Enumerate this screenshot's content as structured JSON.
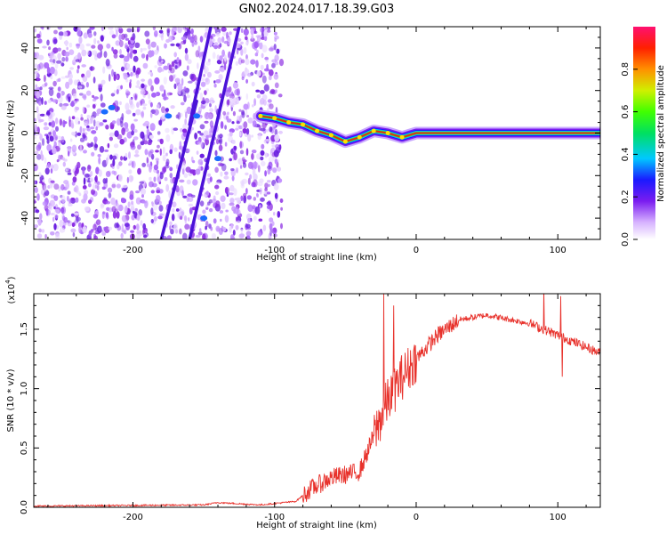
{
  "title": "GN02.2024.017.18.39.G03",
  "chart_data": [
    {
      "type": "heatmap",
      "name": "spectrogram",
      "xlabel": "Height of straight line (km)",
      "ylabel": "Frequency (Hz)",
      "xlim": [
        -270,
        130
      ],
      "ylim": [
        -50,
        50
      ],
      "xticks": [
        -200,
        -100,
        0,
        100
      ],
      "yticks": [
        -40,
        -20,
        0,
        20,
        40
      ],
      "colorbar": {
        "label": "Normalized spectral amplitude",
        "range": [
          0,
          1
        ],
        "ticks": [
          0.0,
          0.2,
          0.4,
          0.6,
          0.8
        ],
        "tick_labels": [
          "0.0",
          "0.2",
          "0.4",
          "0.6",
          "0.8"
        ]
      },
      "signal_track": [
        {
          "x": -110,
          "y": 8
        },
        {
          "x": -100,
          "y": 7
        },
        {
          "x": -90,
          "y": 5
        },
        {
          "x": -80,
          "y": 4
        },
        {
          "x": -70,
          "y": 1
        },
        {
          "x": -60,
          "y": -1
        },
        {
          "x": -50,
          "y": -4
        },
        {
          "x": -40,
          "y": -2
        },
        {
          "x": -30,
          "y": 1
        },
        {
          "x": -20,
          "y": 0
        },
        {
          "x": -10,
          "y": -2
        },
        {
          "x": 0,
          "y": 0
        },
        {
          "x": 50,
          "y": 0
        },
        {
          "x": 100,
          "y": 0
        },
        {
          "x": 130,
          "y": 0
        }
      ],
      "noise_region_x": [
        -270,
        -95
      ]
    },
    {
      "type": "line",
      "name": "snr",
      "xlabel": "Height of straight line (km)",
      "ylabel": "SNR (10 * v/v)",
      "y_multiplier": "(x10",
      "y_multiplier_exp": "4",
      "y_multiplier_close": ")",
      "xlim": [
        -270,
        130
      ],
      "ylim": [
        0,
        1.8
      ],
      "xticks": [
        -200,
        -100,
        0,
        100
      ],
      "yticks": [
        0.0,
        0.5,
        1.0,
        1.5
      ],
      "ytick_labels": [
        "0.0",
        "0.5",
        "1.0",
        "1.5"
      ],
      "color": "#e8322c",
      "trend": [
        {
          "x": -270,
          "y": 0.01
        },
        {
          "x": -150,
          "y": 0.02
        },
        {
          "x": -140,
          "y": 0.04
        },
        {
          "x": -110,
          "y": 0.02
        },
        {
          "x": -85,
          "y": 0.05
        },
        {
          "x": -75,
          "y": 0.15
        },
        {
          "x": -60,
          "y": 0.25
        },
        {
          "x": -40,
          "y": 0.3
        },
        {
          "x": -30,
          "y": 0.6
        },
        {
          "x": -20,
          "y": 0.9
        },
        {
          "x": -10,
          "y": 1.1
        },
        {
          "x": 0,
          "y": 1.25
        },
        {
          "x": 15,
          "y": 1.45
        },
        {
          "x": 30,
          "y": 1.58
        },
        {
          "x": 50,
          "y": 1.62
        },
        {
          "x": 80,
          "y": 1.55
        },
        {
          "x": 100,
          "y": 1.45
        },
        {
          "x": 130,
          "y": 1.3
        }
      ],
      "spikes": [
        {
          "x": -23,
          "y": 1.8
        },
        {
          "x": -16,
          "y": 1.7
        },
        {
          "x": 90,
          "y": 1.85
        },
        {
          "x": 102,
          "y": 1.78
        },
        {
          "x": 103,
          "y": 1.1
        }
      ]
    }
  ]
}
